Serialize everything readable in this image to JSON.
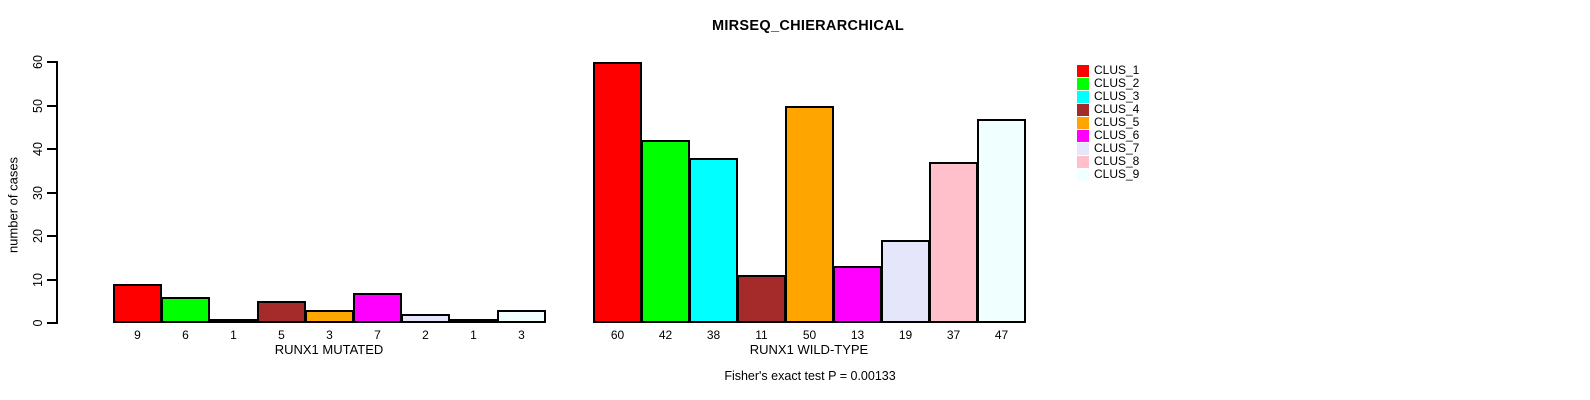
{
  "title": "MIRSEQ_CHIERARCHICAL",
  "caption": "Fisher's exact test P = 0.00133",
  "chart_data": {
    "type": "bar",
    "title": "MIRSEQ_CHIERARCHICAL",
    "ylabel": "number of cases",
    "xlabel": "",
    "ylim": [
      0,
      60
    ],
    "yticks": [
      0,
      10,
      20,
      30,
      40,
      50,
      60
    ],
    "grid": false,
    "legend_position": "right-outside",
    "bar_border_color": "#000000",
    "clusters": [
      {
        "name": "CLUS_1",
        "color": "#FF0000"
      },
      {
        "name": "CLUS_2",
        "color": "#00FF00"
      },
      {
        "name": "CLUS_3",
        "color": "#00FFFF"
      },
      {
        "name": "CLUS_4",
        "color": "#A52A2A"
      },
      {
        "name": "CLUS_5",
        "color": "#FFA500"
      },
      {
        "name": "CLUS_6",
        "color": "#FF00FF"
      },
      {
        "name": "CLUS_7",
        "color": "#E6E6FA"
      },
      {
        "name": "CLUS_8",
        "color": "#FFC0CB"
      },
      {
        "name": "CLUS_9",
        "color": "#F0FFFF"
      }
    ],
    "groups": [
      {
        "label": "RUNX1 MUTATED",
        "values": [
          9,
          6,
          1,
          5,
          3,
          7,
          2,
          1,
          3
        ]
      },
      {
        "label": "RUNX1 WILD-TYPE",
        "values": [
          60,
          42,
          38,
          11,
          50,
          13,
          19,
          37,
          47
        ]
      }
    ],
    "annotation": "Fisher's exact test P = 0.00133"
  }
}
